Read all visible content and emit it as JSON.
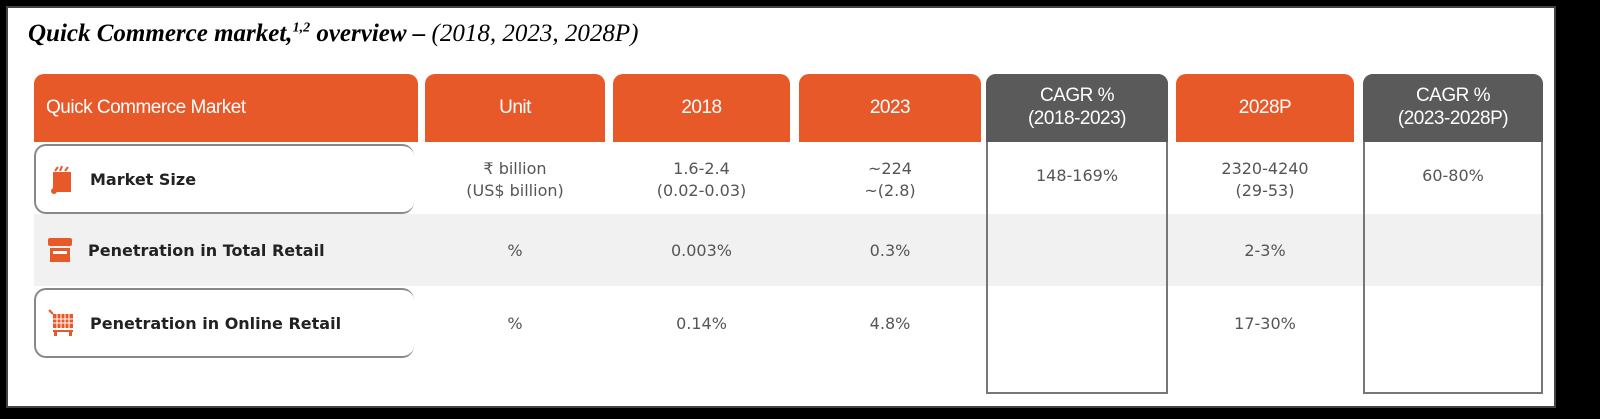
{
  "title": {
    "main": "Quick Commerce market,",
    "sup": "1,2",
    "mid": " overview – ",
    "rest": "(2018, 2023, 2028P)"
  },
  "colors": {
    "orange": "#e8592a",
    "gray": "#5a5a5a"
  },
  "headers": [
    "Quick Commerce Market",
    "Unit",
    "2018",
    "2023",
    "CAGR %\n(2018-2023)",
    "2028P",
    "CAGR %\n(2023-2028P)"
  ],
  "rows": [
    {
      "label": "Market Size",
      "icon": "grocery-bag-icon",
      "unit": "₹ billion\n(US$ billion)",
      "y2018": "1.6-2.4\n(0.02-0.03)",
      "y2023": "~224\n~(2.8)",
      "cagr1": "148-169%",
      "y2028": "2320-4240\n(29-53)",
      "cagr2": "60-80%"
    },
    {
      "label": "Penetration in Total Retail",
      "icon": "storefront-icon",
      "unit": "%",
      "y2018": "0.003%",
      "y2023": "0.3%",
      "cagr1": "",
      "y2028": "2-3%",
      "cagr2": ""
    },
    {
      "label": "Penetration in Online Retail",
      "icon": "shopping-cart-icon",
      "unit": "%",
      "y2018": "0.14%",
      "y2023": "4.8%",
      "cagr1": "",
      "y2028": "17-30%",
      "cagr2": ""
    }
  ]
}
